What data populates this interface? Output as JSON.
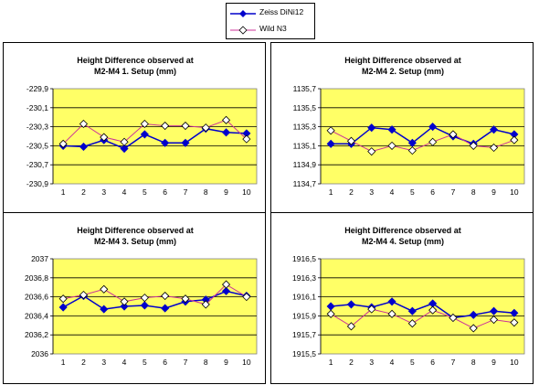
{
  "legend": {
    "series1_label": "Zeiss DiNi12",
    "series2_label": "Wild N3"
  },
  "colors": {
    "plot_background": "#ffff66",
    "series1": "#0000cc",
    "series2": "#cc3399"
  },
  "chart_data": [
    {
      "type": "line",
      "title": [
        "Height Difference observed at",
        "M2-M4 1. Setup  (mm)"
      ],
      "categories": [
        "1",
        "2",
        "3",
        "4",
        "5",
        "6",
        "7",
        "8",
        "9",
        "10"
      ],
      "ylim": [
        -230.9,
        -229.9
      ],
      "yticks": [
        "-229,9",
        "-230,1",
        "-230,3",
        "-230,5",
        "-230,7",
        "-230,9"
      ],
      "grid": true,
      "series": [
        {
          "name": "Zeiss DiNi12",
          "values": [
            -230.5,
            -230.51,
            -230.44,
            -230.53,
            -230.38,
            -230.47,
            -230.47,
            -230.32,
            -230.36,
            -230.37
          ]
        },
        {
          "name": "Wild N3",
          "values": [
            -230.48,
            -230.27,
            -230.41,
            -230.46,
            -230.27,
            -230.29,
            -230.29,
            -230.31,
            -230.23,
            -230.43
          ]
        }
      ]
    },
    {
      "type": "line",
      "title": [
        "Height Difference observed at",
        "M2-M4 2. Setup  (mm)"
      ],
      "categories": [
        "1",
        "2",
        "3",
        "4",
        "5",
        "6",
        "7",
        "8",
        "9",
        "10"
      ],
      "ylim": [
        1134.7,
        1135.7
      ],
      "yticks": [
        "1135,7",
        "1135,5",
        "1135,3",
        "1135,1",
        "1134,9",
        "1134,7"
      ],
      "grid": true,
      "series": [
        {
          "name": "Zeiss DiNi12",
          "values": [
            1135.12,
            1135.12,
            1135.29,
            1135.27,
            1135.13,
            1135.3,
            1135.2,
            1135.12,
            1135.27,
            1135.22
          ]
        },
        {
          "name": "Wild N3",
          "values": [
            1135.26,
            1135.15,
            1135.04,
            1135.1,
            1135.05,
            1135.14,
            1135.22,
            1135.1,
            1135.08,
            1135.16
          ]
        }
      ]
    },
    {
      "type": "line",
      "title": [
        "Height Difference observed at",
        "M2-M4 3. Setup  (mm)"
      ],
      "categories": [
        "1",
        "2",
        "3",
        "4",
        "5",
        "6",
        "7",
        "8",
        "9",
        "10"
      ],
      "ylim": [
        2036.0,
        2037.0
      ],
      "yticks": [
        "2037",
        "2036,8",
        "2036,6",
        "2036,4",
        "2036,2",
        "2036"
      ],
      "grid": true,
      "series": [
        {
          "name": "Zeiss DiNi12",
          "values": [
            2036.49,
            2036.61,
            2036.47,
            2036.5,
            2036.51,
            2036.48,
            2036.55,
            2036.57,
            2036.66,
            2036.61
          ]
        },
        {
          "name": "Wild N3",
          "values": [
            2036.58,
            2036.62,
            2036.68,
            2036.55,
            2036.59,
            2036.61,
            2036.58,
            2036.52,
            2036.73,
            2036.6
          ]
        }
      ]
    },
    {
      "type": "line",
      "title": [
        "Height Difference observed at",
        "M2-M4 4. Setup  (mm)"
      ],
      "categories": [
        "1",
        "2",
        "3",
        "4",
        "5",
        "6",
        "7",
        "8",
        "9",
        "10"
      ],
      "ylim": [
        1915.5,
        1916.5
      ],
      "yticks": [
        "1916,5",
        "1916,3",
        "1916,1",
        "1915,9",
        "1915,7",
        "1915,5"
      ],
      "grid": true,
      "series": [
        {
          "name": "Zeiss DiNi12",
          "values": [
            1916.0,
            1916.02,
            1915.99,
            1916.05,
            1915.95,
            1916.03,
            1915.88,
            1915.91,
            1915.95,
            1915.93
          ]
        },
        {
          "name": "Wild N3",
          "values": [
            1915.92,
            1915.79,
            1915.97,
            1915.92,
            1915.82,
            1915.96,
            1915.88,
            1915.77,
            1915.86,
            1915.83
          ]
        }
      ]
    }
  ]
}
